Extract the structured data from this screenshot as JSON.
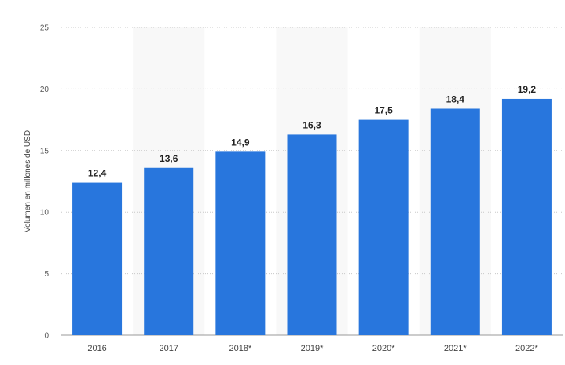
{
  "chart_data": {
    "type": "bar",
    "categories": [
      "2016",
      "2017",
      "2018*",
      "2019*",
      "2020*",
      "2021*",
      "2022*"
    ],
    "values": [
      12.4,
      13.6,
      14.9,
      16.3,
      17.5,
      18.4,
      19.2
    ],
    "data_labels": [
      "12,4",
      "13,6",
      "14,9",
      "16,3",
      "17,5",
      "18,4",
      "19,2"
    ],
    "title": "",
    "xlabel": "",
    "ylabel": "Volumen en millones de USD",
    "ylim": [
      0,
      25
    ],
    "yticks": [
      0,
      5,
      10,
      15,
      20,
      25
    ],
    "ytick_labels": [
      "0",
      "5",
      "10",
      "15",
      "20",
      "25"
    ],
    "grid": true,
    "legend": "none",
    "colors": {
      "bar": "#2876dd",
      "gridline": "#c8c8c8",
      "alt_band": "#f8f8f8"
    }
  }
}
